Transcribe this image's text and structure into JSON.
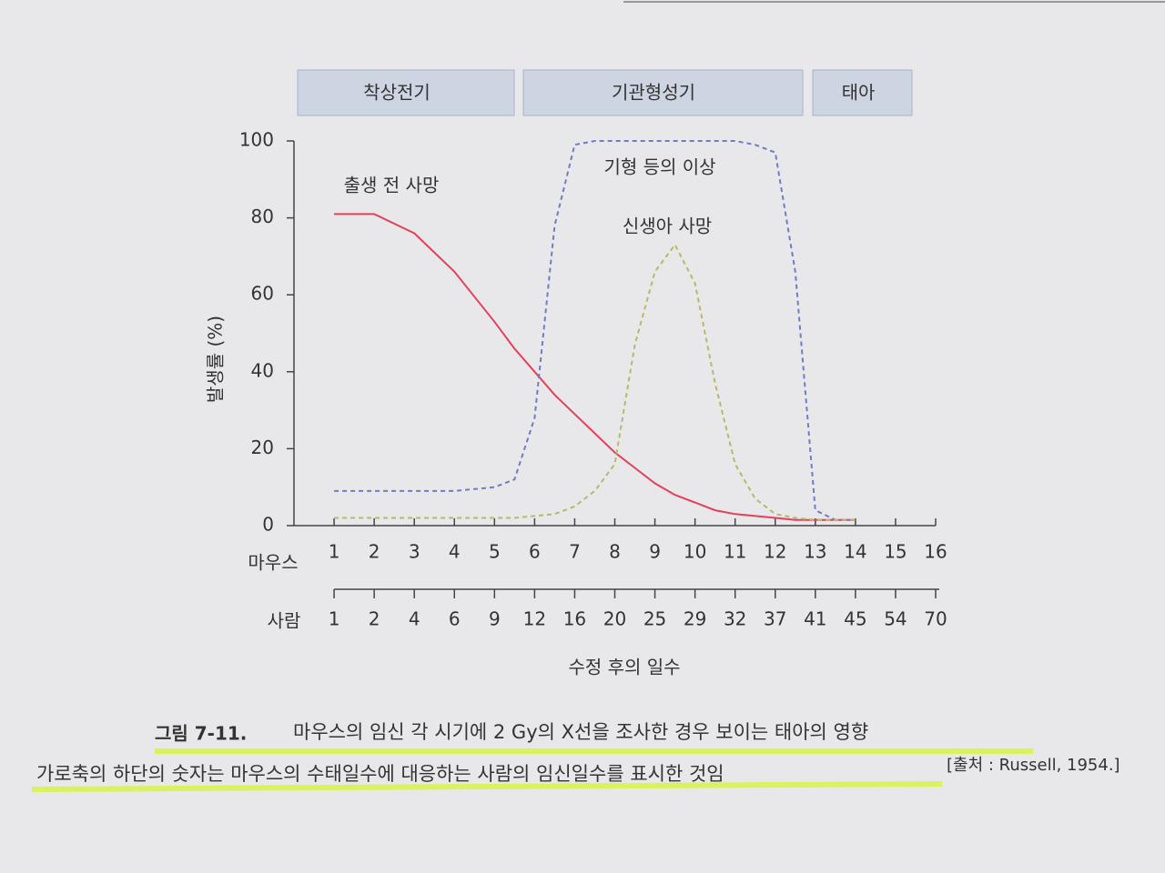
{
  "chart_data": {
    "type": "line",
    "phases": [
      "착상전기",
      "기관형성기",
      "태아"
    ],
    "x_axis_label": "수정 후의 일수",
    "y_axis_label": "발생률 (%)",
    "x_row_label": "마우스",
    "x2_row_label": "사람",
    "x": [
      1,
      2,
      3,
      4,
      5,
      5.5,
      6,
      6.5,
      7,
      7.5,
      8,
      8.5,
      9,
      9.5,
      10,
      10.5,
      11,
      11.5,
      12,
      12.5,
      13,
      13.5,
      14
    ],
    "series": [
      {
        "name": "출생 전 사망",
        "color": "#e2405c",
        "dash": false,
        "values": [
          81,
          81,
          76,
          66,
          53,
          46,
          40,
          34,
          29,
          24,
          19,
          15,
          11,
          8,
          6,
          4,
          3,
          2.5,
          2,
          1.5,
          1.5,
          1.5,
          1.5
        ]
      },
      {
        "name": "기형 등의 이상",
        "color": "#6f7cc4",
        "dash": true,
        "values": [
          9,
          9,
          9,
          9,
          10,
          12,
          28,
          78,
          99,
          100,
          100,
          100,
          100,
          100,
          100,
          100,
          100,
          99,
          97,
          66,
          4,
          1.5,
          1.5
        ]
      },
      {
        "name": "신생아 사망",
        "color": "#b9b86a",
        "dash": true,
        "values": [
          2,
          2,
          2,
          2,
          2,
          2,
          2.5,
          3,
          5,
          9,
          16,
          47,
          66,
          73,
          63,
          37,
          16,
          7,
          3,
          2,
          1.5,
          1.5,
          1.5
        ]
      }
    ],
    "xlim": [
      0,
      16
    ],
    "xticks": [
      1,
      2,
      3,
      4,
      5,
      6,
      7,
      8,
      9,
      10,
      11,
      12,
      13,
      14,
      15,
      16
    ],
    "x2ticks": [
      1,
      2,
      4,
      6,
      9,
      12,
      16,
      20,
      25,
      29,
      32,
      37,
      41,
      45,
      54,
      70
    ],
    "ylim": [
      0,
      100
    ],
    "yticks": [
      0,
      20,
      40,
      60,
      80,
      100
    ]
  },
  "caption": {
    "label": "그림 7-11.",
    "title": "마우스의 임신 각 시기에 2 Gy의 X선을 조사한 경우 보이는 태아의 영향",
    "note": "가로축의 하단의 숫자는 마우스의 수태일수에 대응하는 사람의 임신일수를 표시한 것임",
    "source": "[출처 : Russell, 1954.]"
  }
}
